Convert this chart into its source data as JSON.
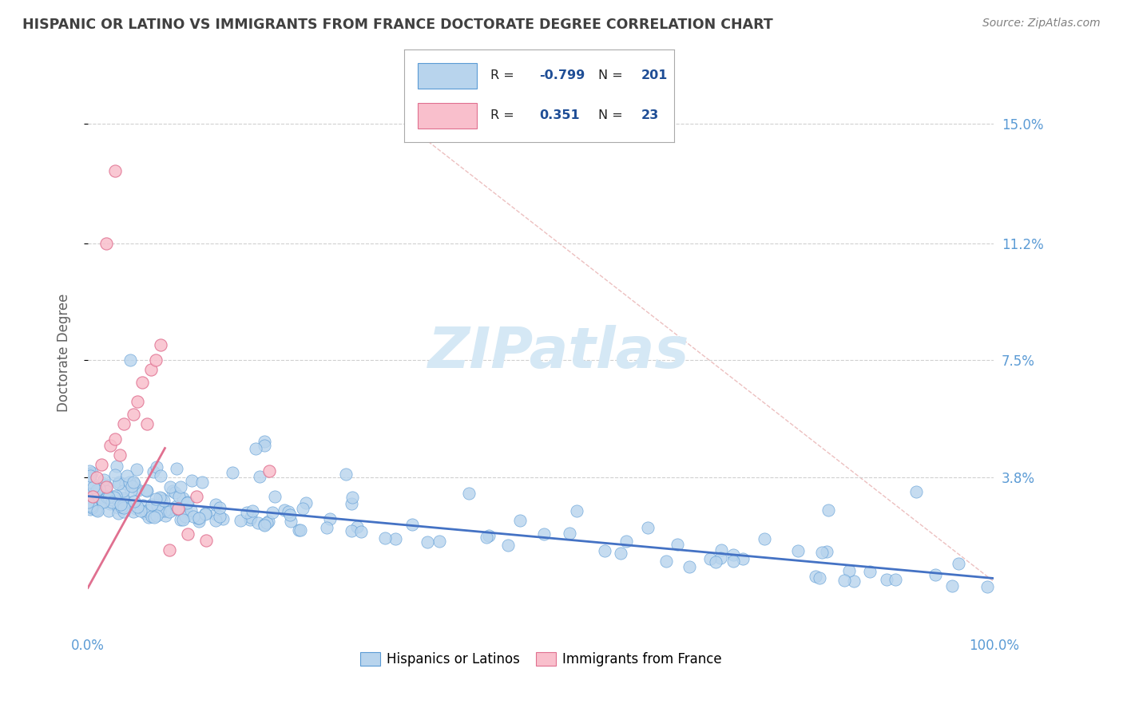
{
  "title": "HISPANIC OR LATINO VS IMMIGRANTS FROM FRANCE DOCTORATE DEGREE CORRELATION CHART",
  "source": "Source: ZipAtlas.com",
  "ylabel": "Doctorate Degree",
  "ytick_values": [
    3.8,
    7.5,
    11.2,
    15.0
  ],
  "ytick_labels": [
    "3.8%",
    "7.5%",
    "11.2%",
    "15.0%"
  ],
  "xmin": 0.0,
  "xmax": 100.0,
  "ymin": -1.0,
  "ymax": 16.5,
  "blue_fill": "#b8d4ed",
  "blue_edge": "#5b9bd5",
  "pink_fill": "#f9bfcc",
  "pink_edge": "#e07090",
  "blue_line_color": "#4472c4",
  "pink_line_color": "#e07090",
  "diag_color": "#e8b0b0",
  "R_blue": -0.799,
  "N_blue": 201,
  "R_pink": 0.351,
  "N_pink": 23,
  "legend_text_color": "#1f4e96",
  "legend_R_value_color": "#1f4e96",
  "legend_N_value_color": "#1f4e96",
  "watermark_color": "#d5e8f5",
  "grid_color": "#d0d0d0",
  "title_color": "#404040",
  "axis_tick_color": "#5b9bd5",
  "source_color": "#808080",
  "background_color": "#ffffff",
  "blue_intercept": 3.2,
  "blue_slope": -0.026,
  "pink_intercept": 0.3,
  "pink_slope": 0.52
}
